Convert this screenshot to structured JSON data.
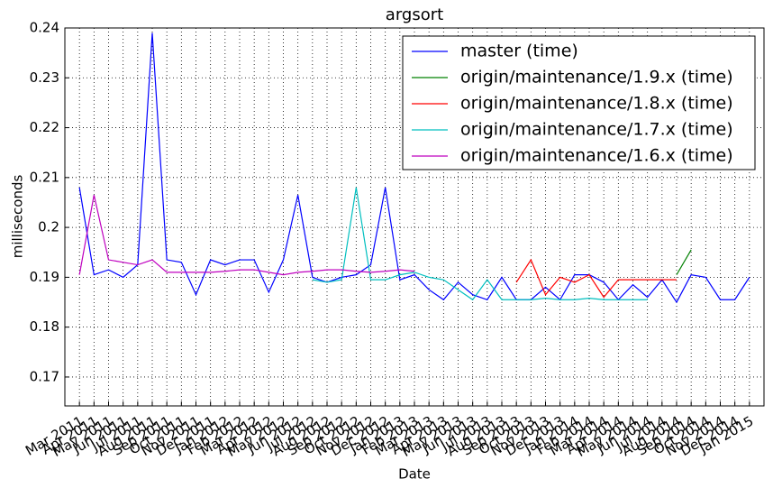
{
  "chart_data": {
    "type": "line",
    "title": "argsort",
    "x_label": "Date",
    "y_label": "milliseconds",
    "x": [
      "2011-03",
      "2011-04",
      "2011-05",
      "2011-06",
      "2011-07",
      "2011-08",
      "2011-09",
      "2011-10",
      "2011-11",
      "2011-12",
      "2012-01",
      "2012-02",
      "2012-03",
      "2012-04",
      "2012-05",
      "2012-06",
      "2012-07",
      "2012-08",
      "2012-09",
      "2012-10",
      "2012-11",
      "2012-12",
      "2013-01",
      "2013-02",
      "2013-03",
      "2013-04",
      "2013-05",
      "2013-06",
      "2013-07",
      "2013-08",
      "2013-09",
      "2013-10",
      "2013-11",
      "2013-12",
      "2014-01",
      "2014-02",
      "2014-03",
      "2014-04",
      "2014-05",
      "2014-06",
      "2014-07",
      "2014-08",
      "2014-09",
      "2014-10",
      "2014-11",
      "2014-12",
      "2015-01"
    ],
    "series": [
      {
        "name": "master (time)",
        "color": "#0000ff",
        "values": [
          0.208,
          0.1905,
          0.1915,
          0.19,
          0.1925,
          0.239,
          0.1935,
          0.193,
          0.1865,
          0.1935,
          0.1925,
          0.1935,
          0.1935,
          0.187,
          0.1935,
          0.2065,
          0.19,
          0.189,
          0.19,
          0.1905,
          0.1925,
          0.208,
          0.1895,
          0.1905,
          0.1875,
          0.1855,
          0.189,
          0.1865,
          0.1855,
          0.19,
          0.1855,
          0.1855,
          0.188,
          0.1855,
          0.1905,
          0.1905,
          0.189,
          0.1855,
          0.1885,
          0.186,
          0.1895,
          0.185,
          0.1905,
          0.19,
          0.1855,
          0.1855,
          0.19
        ]
      },
      {
        "name": "origin/maintenance/1.9.x (time)",
        "color": "#008000",
        "values": [
          null,
          null,
          null,
          null,
          null,
          null,
          null,
          null,
          null,
          null,
          null,
          null,
          null,
          null,
          null,
          null,
          null,
          null,
          null,
          null,
          null,
          null,
          null,
          null,
          null,
          null,
          null,
          null,
          null,
          null,
          null,
          null,
          null,
          null,
          null,
          null,
          null,
          null,
          null,
          null,
          null,
          0.1905,
          0.1955,
          null,
          null,
          null,
          null
        ]
      },
      {
        "name": "origin/maintenance/1.8.x (time)",
        "color": "#ff0000",
        "values": [
          null,
          null,
          null,
          null,
          null,
          null,
          null,
          null,
          null,
          null,
          null,
          null,
          null,
          null,
          null,
          null,
          null,
          null,
          null,
          null,
          null,
          null,
          null,
          null,
          null,
          null,
          null,
          null,
          null,
          null,
          0.189,
          0.1935,
          0.1865,
          0.19,
          0.189,
          0.1905,
          0.186,
          0.1895,
          0.1895,
          0.1895,
          0.1895,
          0.1895,
          null,
          null,
          null,
          null,
          null
        ]
      },
      {
        "name": "origin/maintenance/1.7.x (time)",
        "color": "#00bfbf",
        "values": [
          null,
          null,
          null,
          null,
          null,
          null,
          null,
          null,
          null,
          null,
          null,
          null,
          null,
          null,
          null,
          null,
          0.1895,
          0.189,
          0.1895,
          0.208,
          0.1895,
          0.1895,
          0.1905,
          0.191,
          0.19,
          0.1895,
          0.1875,
          0.1855,
          0.1895,
          0.1855,
          0.1855,
          0.1855,
          0.1858,
          0.1855,
          0.1855,
          0.1858,
          0.1855,
          0.1855,
          0.1855,
          0.1855,
          null,
          null,
          null,
          null,
          null,
          null,
          null
        ]
      },
      {
        "name": "origin/maintenance/1.6.x (time)",
        "color": "#bf00bf",
        "values": [
          0.1905,
          0.2065,
          0.1935,
          0.193,
          0.1925,
          0.1935,
          0.191,
          0.191,
          0.191,
          0.191,
          0.1912,
          0.1915,
          0.1915,
          0.191,
          0.1905,
          0.191,
          0.1912,
          0.1915,
          0.1915,
          0.1912,
          0.191,
          0.1912,
          0.1915,
          0.1912,
          null,
          null,
          null,
          null,
          null,
          null,
          null,
          null,
          null,
          null,
          null,
          null,
          null,
          null,
          null,
          null,
          null,
          null,
          null,
          null,
          null,
          null,
          null
        ]
      }
    ],
    "xlim": [
      "2011-02",
      "2015-02"
    ],
    "xticks": [
      {
        "value": "2011-03",
        "label": "Mar 2011"
      },
      {
        "value": "2011-04",
        "label": "Apr 2011"
      },
      {
        "value": "2011-05",
        "label": "May 2011"
      },
      {
        "value": "2011-06",
        "label": "Jun 2011"
      },
      {
        "value": "2011-07",
        "label": "Jul 2011"
      },
      {
        "value": "2011-08",
        "label": "Aug 2011"
      },
      {
        "value": "2011-09",
        "label": "Sep 2011"
      },
      {
        "value": "2011-10",
        "label": "Oct 2011"
      },
      {
        "value": "2011-11",
        "label": "Nov 2011"
      },
      {
        "value": "2011-12",
        "label": "Dec 2011"
      },
      {
        "value": "2012-01",
        "label": "Jan 2012"
      },
      {
        "value": "2012-02",
        "label": "Feb 2012"
      },
      {
        "value": "2012-03",
        "label": "Mar 2012"
      },
      {
        "value": "2012-04",
        "label": "Apr 2012"
      },
      {
        "value": "2012-05",
        "label": "May 2012"
      },
      {
        "value": "2012-06",
        "label": "Jun 2012"
      },
      {
        "value": "2012-07",
        "label": "Jul 2012"
      },
      {
        "value": "2012-08",
        "label": "Aug 2012"
      },
      {
        "value": "2012-09",
        "label": "Sep 2012"
      },
      {
        "value": "2012-10",
        "label": "Oct 2012"
      },
      {
        "value": "2012-11",
        "label": "Nov 2012"
      },
      {
        "value": "2012-12",
        "label": "Dec 2012"
      },
      {
        "value": "2013-01",
        "label": "Jan 2013"
      },
      {
        "value": "2013-02",
        "label": "Feb 2013"
      },
      {
        "value": "2013-03",
        "label": "Mar 2013"
      },
      {
        "value": "2013-04",
        "label": "Apr 2013"
      },
      {
        "value": "2013-05",
        "label": "May 2013"
      },
      {
        "value": "2013-06",
        "label": "Jun 2013"
      },
      {
        "value": "2013-07",
        "label": "Jul 2013"
      },
      {
        "value": "2013-08",
        "label": "Aug 2013"
      },
      {
        "value": "2013-09",
        "label": "Sep 2013"
      },
      {
        "value": "2013-10",
        "label": "Oct 2013"
      },
      {
        "value": "2013-11",
        "label": "Nov 2013"
      },
      {
        "value": "2013-12",
        "label": "Dec 2013"
      },
      {
        "value": "2014-01",
        "label": "Jan 2014"
      },
      {
        "value": "2014-02",
        "label": "Feb 2014"
      },
      {
        "value": "2014-03",
        "label": "Mar 2014"
      },
      {
        "value": "2014-04",
        "label": "Apr 2014"
      },
      {
        "value": "2014-05",
        "label": "May 2014"
      },
      {
        "value": "2014-06",
        "label": "Jun 2014"
      },
      {
        "value": "2014-07",
        "label": "Jul 2014"
      },
      {
        "value": "2014-08",
        "label": "Aug 2014"
      },
      {
        "value": "2014-09",
        "label": "Sep 2014"
      },
      {
        "value": "2014-10",
        "label": "Oct 2014"
      },
      {
        "value": "2014-11",
        "label": "Nov 2014"
      },
      {
        "value": "2014-12",
        "label": "Dec 2014"
      },
      {
        "value": "2015-01",
        "label": "Jan 2015"
      }
    ],
    "ylim": [
      0.1642,
      0.24
    ],
    "yticks": [
      0.17,
      0.18,
      0.19,
      0.2,
      0.21,
      0.22,
      0.23,
      0.24
    ],
    "grid": true,
    "legend": "upper right"
  }
}
